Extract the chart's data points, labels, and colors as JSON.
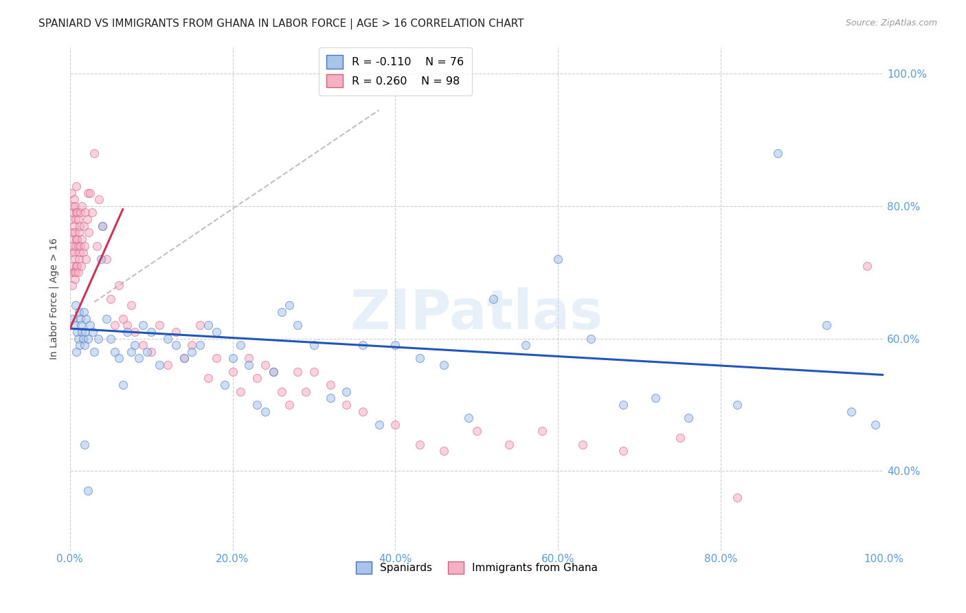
{
  "title": "SPANIARD VS IMMIGRANTS FROM GHANA IN LABOR FORCE | AGE > 16 CORRELATION CHART",
  "source": "Source: ZipAtlas.com",
  "ylabel": "In Labor Force | Age > 16",
  "xlim": [
    0.0,
    1.0
  ],
  "ylim": [
    0.28,
    1.04
  ],
  "yticks": [
    0.4,
    0.6,
    0.8,
    1.0
  ],
  "xticks": [
    0.0,
    0.2,
    0.4,
    0.6,
    0.8,
    1.0
  ],
  "ytick_labels": [
    "40.0%",
    "60.0%",
    "80.0%",
    "100.0%"
  ],
  "xtick_labels": [
    "0.0%",
    "20.0%",
    "40.0%",
    "60.0%",
    "80.0%",
    "100.0%"
  ],
  "spaniards_color": "#aac4e8",
  "spaniards_edge": "#4472c4",
  "ghana_color": "#f4b0c4",
  "ghana_edge": "#d06080",
  "blue_line_color": "#2255bb",
  "pink_line_color": "#cc3355",
  "dashed_line_color": "#c0b0b8",
  "legend_R_blue": "R = -0.110",
  "legend_N_blue": "N = 76",
  "legend_R_pink": "R = 0.260",
  "legend_N_pink": "N = 98",
  "legend_label_blue": "Spaniards",
  "legend_label_pink": "Immigrants from Ghana",
  "watermark": "ZIPatlas",
  "spaniards_x": [
    0.004,
    0.006,
    0.007,
    0.008,
    0.009,
    0.01,
    0.011,
    0.012,
    0.013,
    0.014,
    0.015,
    0.016,
    0.017,
    0.018,
    0.019,
    0.02,
    0.022,
    0.025,
    0.028,
    0.03,
    0.035,
    0.038,
    0.04,
    0.045,
    0.05,
    0.055,
    0.06,
    0.065,
    0.07,
    0.075,
    0.08,
    0.085,
    0.09,
    0.095,
    0.1,
    0.11,
    0.12,
    0.13,
    0.14,
    0.15,
    0.16,
    0.17,
    0.18,
    0.19,
    0.2,
    0.21,
    0.22,
    0.23,
    0.24,
    0.25,
    0.26,
    0.27,
    0.28,
    0.3,
    0.32,
    0.34,
    0.36,
    0.38,
    0.4,
    0.43,
    0.46,
    0.49,
    0.52,
    0.56,
    0.6,
    0.64,
    0.68,
    0.72,
    0.76,
    0.82,
    0.87,
    0.93,
    0.96,
    0.99,
    0.018,
    0.022
  ],
  "spaniards_y": [
    0.63,
    0.62,
    0.65,
    0.58,
    0.61,
    0.6,
    0.64,
    0.59,
    0.63,
    0.62,
    0.61,
    0.6,
    0.64,
    0.59,
    0.61,
    0.63,
    0.6,
    0.62,
    0.61,
    0.58,
    0.6,
    0.72,
    0.77,
    0.63,
    0.6,
    0.58,
    0.57,
    0.53,
    0.61,
    0.58,
    0.59,
    0.57,
    0.62,
    0.58,
    0.61,
    0.56,
    0.6,
    0.59,
    0.57,
    0.58,
    0.59,
    0.62,
    0.61,
    0.53,
    0.57,
    0.59,
    0.56,
    0.5,
    0.49,
    0.55,
    0.64,
    0.65,
    0.62,
    0.59,
    0.51,
    0.52,
    0.59,
    0.47,
    0.59,
    0.57,
    0.56,
    0.48,
    0.66,
    0.59,
    0.72,
    0.6,
    0.5,
    0.51,
    0.48,
    0.5,
    0.88,
    0.62,
    0.49,
    0.47,
    0.44,
    0.37
  ],
  "ghana_x": [
    0.001,
    0.001,
    0.002,
    0.002,
    0.002,
    0.003,
    0.003,
    0.003,
    0.004,
    0.004,
    0.004,
    0.005,
    0.005,
    0.005,
    0.005,
    0.006,
    0.006,
    0.006,
    0.006,
    0.007,
    0.007,
    0.007,
    0.008,
    0.008,
    0.008,
    0.008,
    0.009,
    0.009,
    0.009,
    0.01,
    0.01,
    0.01,
    0.011,
    0.011,
    0.012,
    0.012,
    0.013,
    0.013,
    0.014,
    0.015,
    0.015,
    0.016,
    0.017,
    0.018,
    0.019,
    0.02,
    0.021,
    0.022,
    0.023,
    0.025,
    0.027,
    0.03,
    0.033,
    0.036,
    0.04,
    0.045,
    0.05,
    0.055,
    0.06,
    0.065,
    0.07,
    0.075,
    0.08,
    0.09,
    0.1,
    0.11,
    0.12,
    0.13,
    0.14,
    0.15,
    0.16,
    0.17,
    0.18,
    0.2,
    0.21,
    0.22,
    0.23,
    0.24,
    0.25,
    0.26,
    0.27,
    0.28,
    0.29,
    0.3,
    0.32,
    0.34,
    0.36,
    0.4,
    0.43,
    0.46,
    0.5,
    0.54,
    0.58,
    0.63,
    0.68,
    0.75,
    0.82,
    0.98
  ],
  "ghana_y": [
    0.73,
    0.78,
    0.7,
    0.75,
    0.82,
    0.68,
    0.74,
    0.79,
    0.71,
    0.76,
    0.8,
    0.7,
    0.73,
    0.77,
    0.81,
    0.69,
    0.72,
    0.76,
    0.8,
    0.7,
    0.74,
    0.78,
    0.71,
    0.75,
    0.79,
    0.83,
    0.71,
    0.75,
    0.79,
    0.7,
    0.74,
    0.78,
    0.72,
    0.76,
    0.73,
    0.77,
    0.74,
    0.79,
    0.71,
    0.75,
    0.8,
    0.73,
    0.77,
    0.74,
    0.79,
    0.72,
    0.78,
    0.82,
    0.76,
    0.82,
    0.79,
    0.88,
    0.74,
    0.81,
    0.77,
    0.72,
    0.66,
    0.62,
    0.68,
    0.63,
    0.62,
    0.65,
    0.61,
    0.59,
    0.58,
    0.62,
    0.56,
    0.61,
    0.57,
    0.59,
    0.62,
    0.54,
    0.57,
    0.55,
    0.52,
    0.57,
    0.54,
    0.56,
    0.55,
    0.52,
    0.5,
    0.55,
    0.52,
    0.55,
    0.53,
    0.5,
    0.49,
    0.47,
    0.44,
    0.43,
    0.46,
    0.44,
    0.46,
    0.44,
    0.43,
    0.45,
    0.36,
    0.71
  ],
  "blue_trend_x": [
    0.0,
    1.0
  ],
  "blue_trend_y": [
    0.615,
    0.545
  ],
  "pink_trend_x": [
    0.0,
    0.065
  ],
  "pink_trend_y": [
    0.615,
    0.795
  ],
  "dashed_trend_x": [
    0.03,
    0.38
  ],
  "dashed_trend_y": [
    0.655,
    0.945
  ],
  "background_color": "#ffffff",
  "grid_color": "#cccccc",
  "tick_color": "#5b9bd5",
  "title_fontsize": 11,
  "axis_fontsize": 10,
  "tick_fontsize": 11,
  "marker_size": 75,
  "marker_alpha": 0.55
}
